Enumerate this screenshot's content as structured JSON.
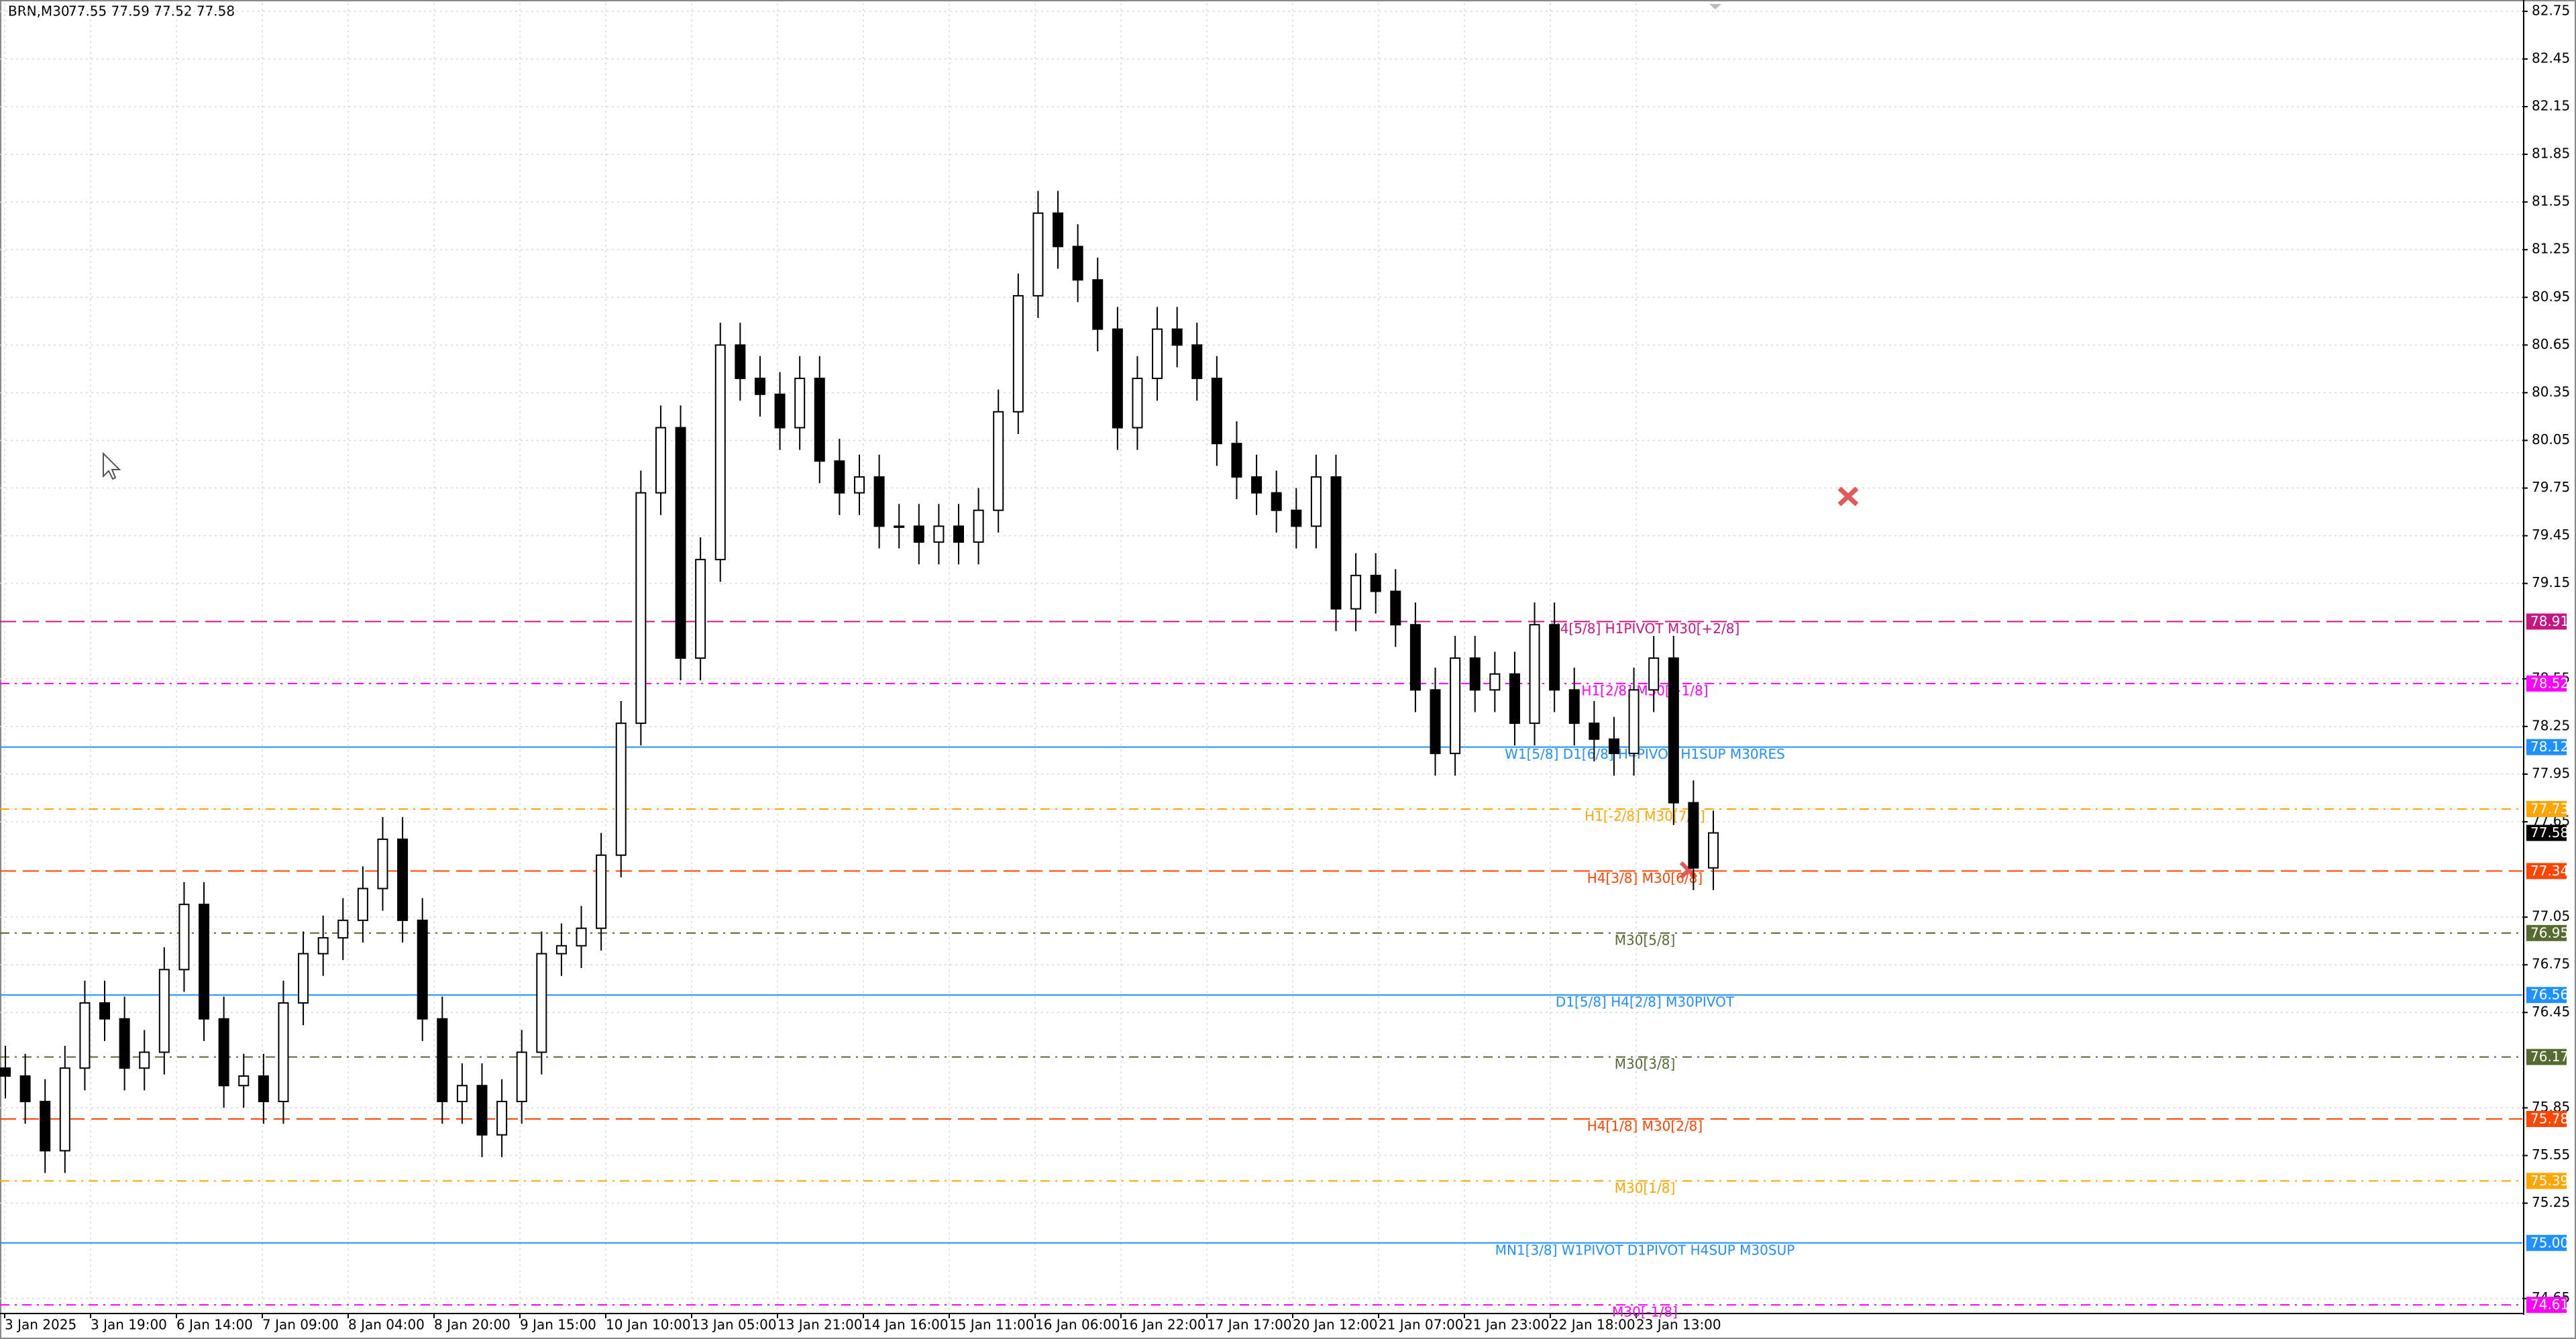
{
  "chart_data": {
    "type": "candlestick",
    "title": "BRN,M30",
    "subtitle": "77.55 77.59 77.52 77.58",
    "x_labels": [
      "3 Jan 2025",
      "3 Jan 19:00",
      "6 Jan 14:00",
      "7 Jan 09:00",
      "8 Jan 04:00",
      "8 Jan 20:00",
      "9 Jan 15:00",
      "10 Jan 10:00",
      "13 Jan 05:00",
      "13 Jan 21:00",
      "14 Jan 16:00",
      "15 Jan 11:00",
      "16 Jan 06:00",
      "16 Jan 22:00",
      "17 Jan 17:00",
      "20 Jan 12:00",
      "21 Jan 07:00",
      "21 Jan 23:00",
      "22 Jan 18:00",
      "23 Jan 13:00"
    ],
    "open": [
      76.1,
      76.05,
      75.89,
      75.58,
      76.1,
      76.51,
      76.41,
      76.1,
      76.2,
      76.72,
      77.13,
      76.41,
      75.99,
      76.05,
      75.89,
      76.51,
      76.82,
      76.92,
      77.03,
      77.23,
      77.54,
      77.03,
      76.41,
      75.89,
      75.99,
      75.68,
      75.89,
      76.2,
      76.82,
      76.87,
      76.98,
      77.44,
      78.27,
      79.72,
      80.13,
      78.68,
      79.3,
      80.65,
      80.44,
      80.34,
      80.13,
      80.44,
      79.92,
      79.72,
      79.82,
      79.51,
      79.51,
      79.41,
      79.51,
      79.41,
      79.61,
      80.23,
      80.96,
      81.48,
      81.27,
      81.06,
      80.75,
      80.13,
      80.44,
      80.75,
      80.65,
      80.44,
      80.03,
      79.82,
      79.72,
      79.61,
      79.51,
      79.82,
      78.99,
      79.2,
      79.1,
      78.89,
      78.48,
      78.08,
      78.68,
      78.48,
      78.58,
      78.27,
      78.89,
      78.48,
      78.27,
      78.17,
      78.08,
      78.48,
      78.68,
      77.77,
      77.36
    ],
    "high": [
      76.24,
      76.19,
      76.03,
      76.24,
      76.65,
      76.65,
      76.55,
      76.34,
      76.86,
      77.27,
      77.27,
      76.55,
      76.19,
      76.19,
      76.65,
      76.96,
      77.06,
      77.17,
      77.37,
      77.68,
      77.68,
      77.17,
      76.55,
      76.13,
      76.13,
      76.03,
      76.34,
      76.96,
      77.01,
      77.12,
      77.58,
      78.41,
      79.86,
      80.27,
      80.27,
      79.44,
      80.79,
      80.79,
      80.58,
      80.48,
      80.58,
      80.58,
      80.06,
      79.96,
      79.96,
      79.65,
      79.65,
      79.65,
      79.65,
      79.75,
      80.37,
      81.1,
      81.62,
      81.62,
      81.41,
      81.2,
      80.89,
      80.58,
      80.89,
      80.89,
      80.79,
      80.58,
      80.17,
      79.96,
      79.86,
      79.75,
      79.96,
      79.96,
      79.34,
      79.34,
      79.24,
      79.03,
      78.62,
      78.82,
      78.82,
      78.72,
      78.72,
      79.03,
      79.03,
      78.62,
      78.41,
      78.31,
      78.62,
      78.82,
      78.82,
      77.91,
      77.72
    ],
    "low": [
      75.91,
      75.75,
      75.44,
      75.44,
      75.96,
      76.27,
      75.96,
      75.96,
      76.06,
      76.58,
      76.27,
      75.85,
      75.85,
      75.75,
      75.75,
      76.37,
      76.68,
      76.78,
      76.89,
      77.09,
      76.89,
      76.27,
      75.75,
      75.75,
      75.54,
      75.54,
      75.75,
      76.06,
      76.68,
      76.73,
      76.84,
      77.3,
      78.13,
      79.58,
      78.54,
      78.54,
      79.16,
      80.3,
      80.2,
      79.99,
      79.99,
      79.78,
      79.58,
      79.58,
      79.37,
      79.37,
      79.27,
      79.27,
      79.27,
      79.27,
      79.47,
      80.09,
      80.82,
      81.13,
      80.92,
      80.61,
      79.99,
      79.99,
      80.3,
      80.51,
      80.3,
      79.89,
      79.68,
      79.58,
      79.47,
      79.37,
      79.37,
      78.85,
      78.85,
      78.96,
      78.75,
      78.34,
      77.94,
      77.94,
      78.34,
      78.34,
      78.13,
      78.13,
      78.34,
      78.13,
      78.03,
      77.94,
      77.94,
      78.34,
      77.63,
      77.22,
      77.22
    ],
    "close": [
      76.05,
      75.89,
      75.58,
      76.1,
      76.51,
      76.41,
      76.1,
      76.2,
      76.72,
      77.13,
      76.41,
      75.99,
      76.05,
      75.89,
      76.51,
      76.82,
      76.92,
      77.03,
      77.23,
      77.54,
      77.03,
      76.41,
      75.89,
      75.99,
      75.68,
      75.89,
      76.2,
      76.82,
      76.87,
      76.98,
      77.44,
      78.27,
      79.72,
      80.13,
      78.68,
      79.3,
      80.65,
      80.44,
      80.34,
      80.13,
      80.44,
      79.92,
      79.72,
      79.82,
      79.51,
      79.51,
      79.41,
      79.51,
      79.41,
      79.61,
      80.23,
      80.96,
      81.48,
      81.27,
      81.06,
      80.75,
      80.13,
      80.44,
      80.75,
      80.65,
      80.44,
      80.03,
      79.82,
      79.72,
      79.61,
      79.51,
      79.82,
      78.99,
      79.2,
      79.1,
      78.89,
      78.48,
      78.08,
      78.68,
      78.48,
      78.58,
      78.27,
      78.89,
      78.48,
      78.27,
      78.17,
      78.08,
      78.48,
      78.68,
      77.77,
      77.36,
      77.58
    ],
    "ylim": [
      74.56,
      82.8
    ],
    "yticks": [
      82.75,
      82.45,
      82.15,
      81.85,
      81.55,
      81.25,
      80.95,
      80.65,
      80.35,
      80.05,
      79.75,
      79.45,
      79.15,
      78.55,
      78.25,
      77.95,
      77.65,
      77.05,
      76.75,
      76.45,
      75.85,
      75.55,
      75.25,
      74.65
    ],
    "grid": true,
    "last_price": 77.58,
    "levels": {
      "names": [
        "H4[5/8] H1PIVOT M30[+2/8]",
        "H1[2/8] M30[+1/8]",
        "W1[5/8] D1[6/8] H4PIVOT H1SUP M30RES",
        "H1[-2/8] M30[7/8]",
        "H4[3/8] M30[6/8]",
        "M30[5/8]",
        "D1[5/8] H4[2/8] M30PIVOT",
        "M30[3/8]",
        "H4[1/8] M30[2/8]",
        "M30[1/8]",
        "MN1[3/8] W1PIVOT D1PIVOT H4SUP M30SUP",
        "M30[-1/8]"
      ],
      "values": [
        78.91,
        78.52,
        78.12,
        77.73,
        77.34,
        76.95,
        76.56,
        76.17,
        75.78,
        75.39,
        75.0,
        74.61
      ],
      "value_labels": [
        "78.91",
        "78.52",
        "78.12",
        "77.73",
        "77.34",
        "76.95",
        "76.56",
        "76.17",
        "75.78",
        "75.39",
        "75.00",
        "74.61"
      ],
      "colors": [
        "#c71585",
        "#ff00ff",
        "#1e90ff",
        "#ffa500",
        "#ff4500",
        "#556b2f",
        "#1e90ff",
        "#556b2f",
        "#ff4500",
        "#ffa500",
        "#1e90ff",
        "#ff00ff"
      ],
      "dashes": [
        "24 10",
        "14 8 3 8",
        "",
        "14 8 3 8",
        "24 10",
        "14 8 3 8",
        "",
        "14 8 3 8",
        "24 10",
        "14 8 3 8",
        "",
        "14 8 3 8"
      ]
    }
  }
}
